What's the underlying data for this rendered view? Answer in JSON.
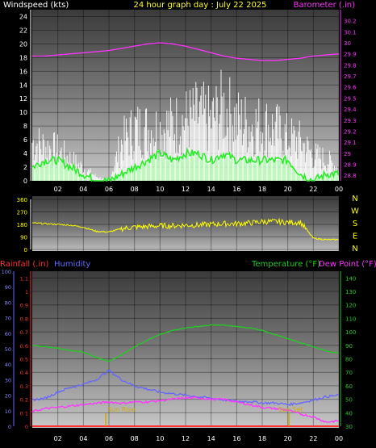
{
  "header": {
    "left_label": "Windspeed (kts)",
    "center_label": "24 hour graph day : July 22 2025",
    "right_label": "Barometer (.in)"
  },
  "x_ticks": [
    "02",
    "04",
    "06",
    "08",
    "10",
    "12",
    "14",
    "16",
    "18",
    "20",
    "22",
    "00"
  ],
  "x_ticks_bottom": [
    "02",
    "04",
    "06",
    "08",
    "10",
    "12",
    "14",
    "16",
    "18",
    "20",
    "22",
    "00"
  ],
  "colors": {
    "windspeed_text": "#ffffff",
    "title_text": "#ffff33",
    "barometer": "#ff33ff",
    "gust": "#ffffff",
    "wind_avg": "#22ee22",
    "wind_fill": "#aaffaa",
    "direction": "#ffff00",
    "rainfall": "#ff3333",
    "humidity": "#6666ff",
    "temperature": "#22cc22",
    "dewpoint": "#ff33ff",
    "sun": "#ccaa00"
  },
  "chart_data": [
    {
      "type": "line",
      "name": "wind-barometer",
      "title": "",
      "xlabel": "",
      "ylabel_left": "Windspeed (kts)",
      "ylabel_right": "Barometer (.in)",
      "x_range": [
        0,
        24
      ],
      "y_left_ticks": [
        "0",
        "2",
        "4",
        "6",
        "8",
        "10",
        "12",
        "14",
        "16",
        "18",
        "20",
        "22",
        "24"
      ],
      "y_left_range": [
        0,
        25
      ],
      "y_right_ticks": [
        "28.8",
        "28.9",
        "29",
        "29.1",
        "29.2",
        "29.3",
        "29.4",
        "29.5",
        "29.6",
        "29.7",
        "29.8",
        "29.9",
        "30",
        "30.1",
        "30.2"
      ],
      "y_right_range": [
        28.75,
        30.3
      ],
      "barometer": {
        "x": [
          0,
          1,
          2,
          3,
          4,
          5,
          6,
          7,
          8,
          9,
          10,
          11,
          12,
          13,
          14,
          15,
          16,
          17,
          18,
          19,
          20,
          21,
          22,
          23,
          24
        ],
        "y": [
          29.88,
          29.88,
          29.89,
          29.9,
          29.91,
          29.92,
          29.93,
          29.95,
          29.97,
          29.99,
          30.0,
          29.99,
          29.97,
          29.94,
          29.91,
          29.88,
          29.86,
          29.85,
          29.84,
          29.84,
          29.85,
          29.86,
          29.88,
          29.89,
          29.9
        ]
      },
      "gust_max": {
        "x": [
          0,
          1,
          2,
          3,
          4,
          5,
          6,
          7,
          8,
          9,
          10,
          11,
          12,
          13,
          14,
          15,
          16,
          17,
          18,
          19,
          20,
          21,
          22,
          23,
          24
        ],
        "y": [
          9,
          8,
          7,
          5,
          3,
          1,
          0,
          9,
          12,
          12,
          12,
          13,
          14,
          15,
          14,
          17,
          14,
          13,
          13,
          12,
          10,
          9,
          6,
          5,
          3
        ]
      },
      "wind_avg": {
        "x": [
          0,
          1,
          2,
          3,
          4,
          5,
          6,
          7,
          8,
          9,
          10,
          11,
          12,
          13,
          14,
          15,
          16,
          17,
          18,
          19,
          20,
          21,
          22,
          23,
          24
        ],
        "y": [
          2,
          3,
          3,
          2,
          1,
          0,
          0,
          1,
          2,
          3,
          4,
          3,
          4,
          4,
          3,
          4,
          3,
          3,
          3,
          3,
          3,
          1,
          0,
          1,
          1
        ]
      }
    },
    {
      "type": "line",
      "name": "wind-direction",
      "compass_labels": [
        "N",
        "W",
        "S",
        "E",
        "N"
      ],
      "y_ticks": [
        "0",
        "90",
        "180",
        "270",
        "360"
      ],
      "y_range": [
        0,
        360
      ],
      "x_range": [
        0,
        24
      ],
      "x": [
        0,
        1,
        2,
        3,
        4,
        5,
        6,
        7,
        8,
        9,
        10,
        11,
        12,
        13,
        14,
        15,
        16,
        17,
        18,
        19,
        20,
        21,
        22,
        23,
        24
      ],
      "y": [
        190,
        185,
        180,
        175,
        160,
        130,
        125,
        150,
        160,
        165,
        170,
        170,
        175,
        175,
        180,
        185,
        185,
        190,
        200,
        200,
        195,
        195,
        80,
        70,
        70
      ]
    },
    {
      "type": "line",
      "name": "temp-humidity-rain",
      "y_left_label_rain": "Rainfall (.in)",
      "y_left_label_humidity": "Humidity",
      "y_right_label_temp": "Temperature (°F)",
      "y_right_label_dew": "Dew Point (°F)",
      "humidity_ticks": [
        "0",
        "10",
        "20",
        "30",
        "40",
        "50",
        "60",
        "70",
        "80",
        "90",
        "100"
      ],
      "humidity_range": [
        0,
        100
      ],
      "rain_ticks": [
        "0",
        "0.1",
        "0.2",
        "0.3",
        "0.4",
        "0.5",
        "0.6",
        "0.7",
        "0.8",
        "0.9",
        "1",
        "1.1"
      ],
      "rain_range": [
        0,
        1.15
      ],
      "temp_ticks": [
        "30",
        "40",
        "50",
        "60",
        "70",
        "80",
        "90",
        "100",
        "110",
        "120",
        "130",
        "140"
      ],
      "temp_range": [
        30,
        145
      ],
      "x_range": [
        0,
        24
      ],
      "temperature": {
        "x": [
          0,
          1,
          2,
          3,
          4,
          5,
          6,
          7,
          8,
          9,
          10,
          11,
          12,
          13,
          14,
          15,
          16,
          17,
          18,
          19,
          20,
          21,
          22,
          23,
          24
        ],
        "y": [
          90,
          89,
          88,
          86,
          85,
          81,
          78,
          83,
          89,
          94,
          98,
          101,
          103,
          104,
          105,
          105,
          104,
          103,
          101,
          98,
          95,
          92,
          89,
          86,
          84
        ]
      },
      "dewpoint": {
        "x": [
          0,
          1,
          2,
          3,
          4,
          5,
          6,
          7,
          8,
          9,
          10,
          11,
          12,
          13,
          14,
          15,
          16,
          17,
          18,
          19,
          20,
          21,
          22,
          23,
          24
        ],
        "y": [
          41,
          43,
          44,
          45,
          46,
          47,
          48,
          47,
          48,
          48,
          49,
          50,
          51,
          51,
          50,
          50,
          48,
          46,
          44,
          43,
          42,
          39,
          37,
          33,
          34
        ]
      },
      "humidity": {
        "x": [
          0,
          1,
          2,
          3,
          4,
          5,
          6,
          7,
          8,
          9,
          10,
          11,
          12,
          13,
          14,
          15,
          16,
          17,
          18,
          19,
          20,
          21,
          22,
          23,
          24
        ],
        "y": [
          17,
          18,
          22,
          25,
          27,
          30,
          36,
          30,
          26,
          24,
          22,
          21,
          20,
          19,
          18,
          17,
          16,
          16,
          15,
          15,
          14,
          15,
          17,
          19,
          20
        ]
      },
      "rainfall": {
        "x": [
          0,
          24
        ],
        "y": [
          0,
          0
        ]
      },
      "sun_events": [
        {
          "label": "Sun Rise",
          "x": 5.75
        },
        {
          "label": "Sun Set",
          "x": 20.1
        }
      ]
    }
  ]
}
